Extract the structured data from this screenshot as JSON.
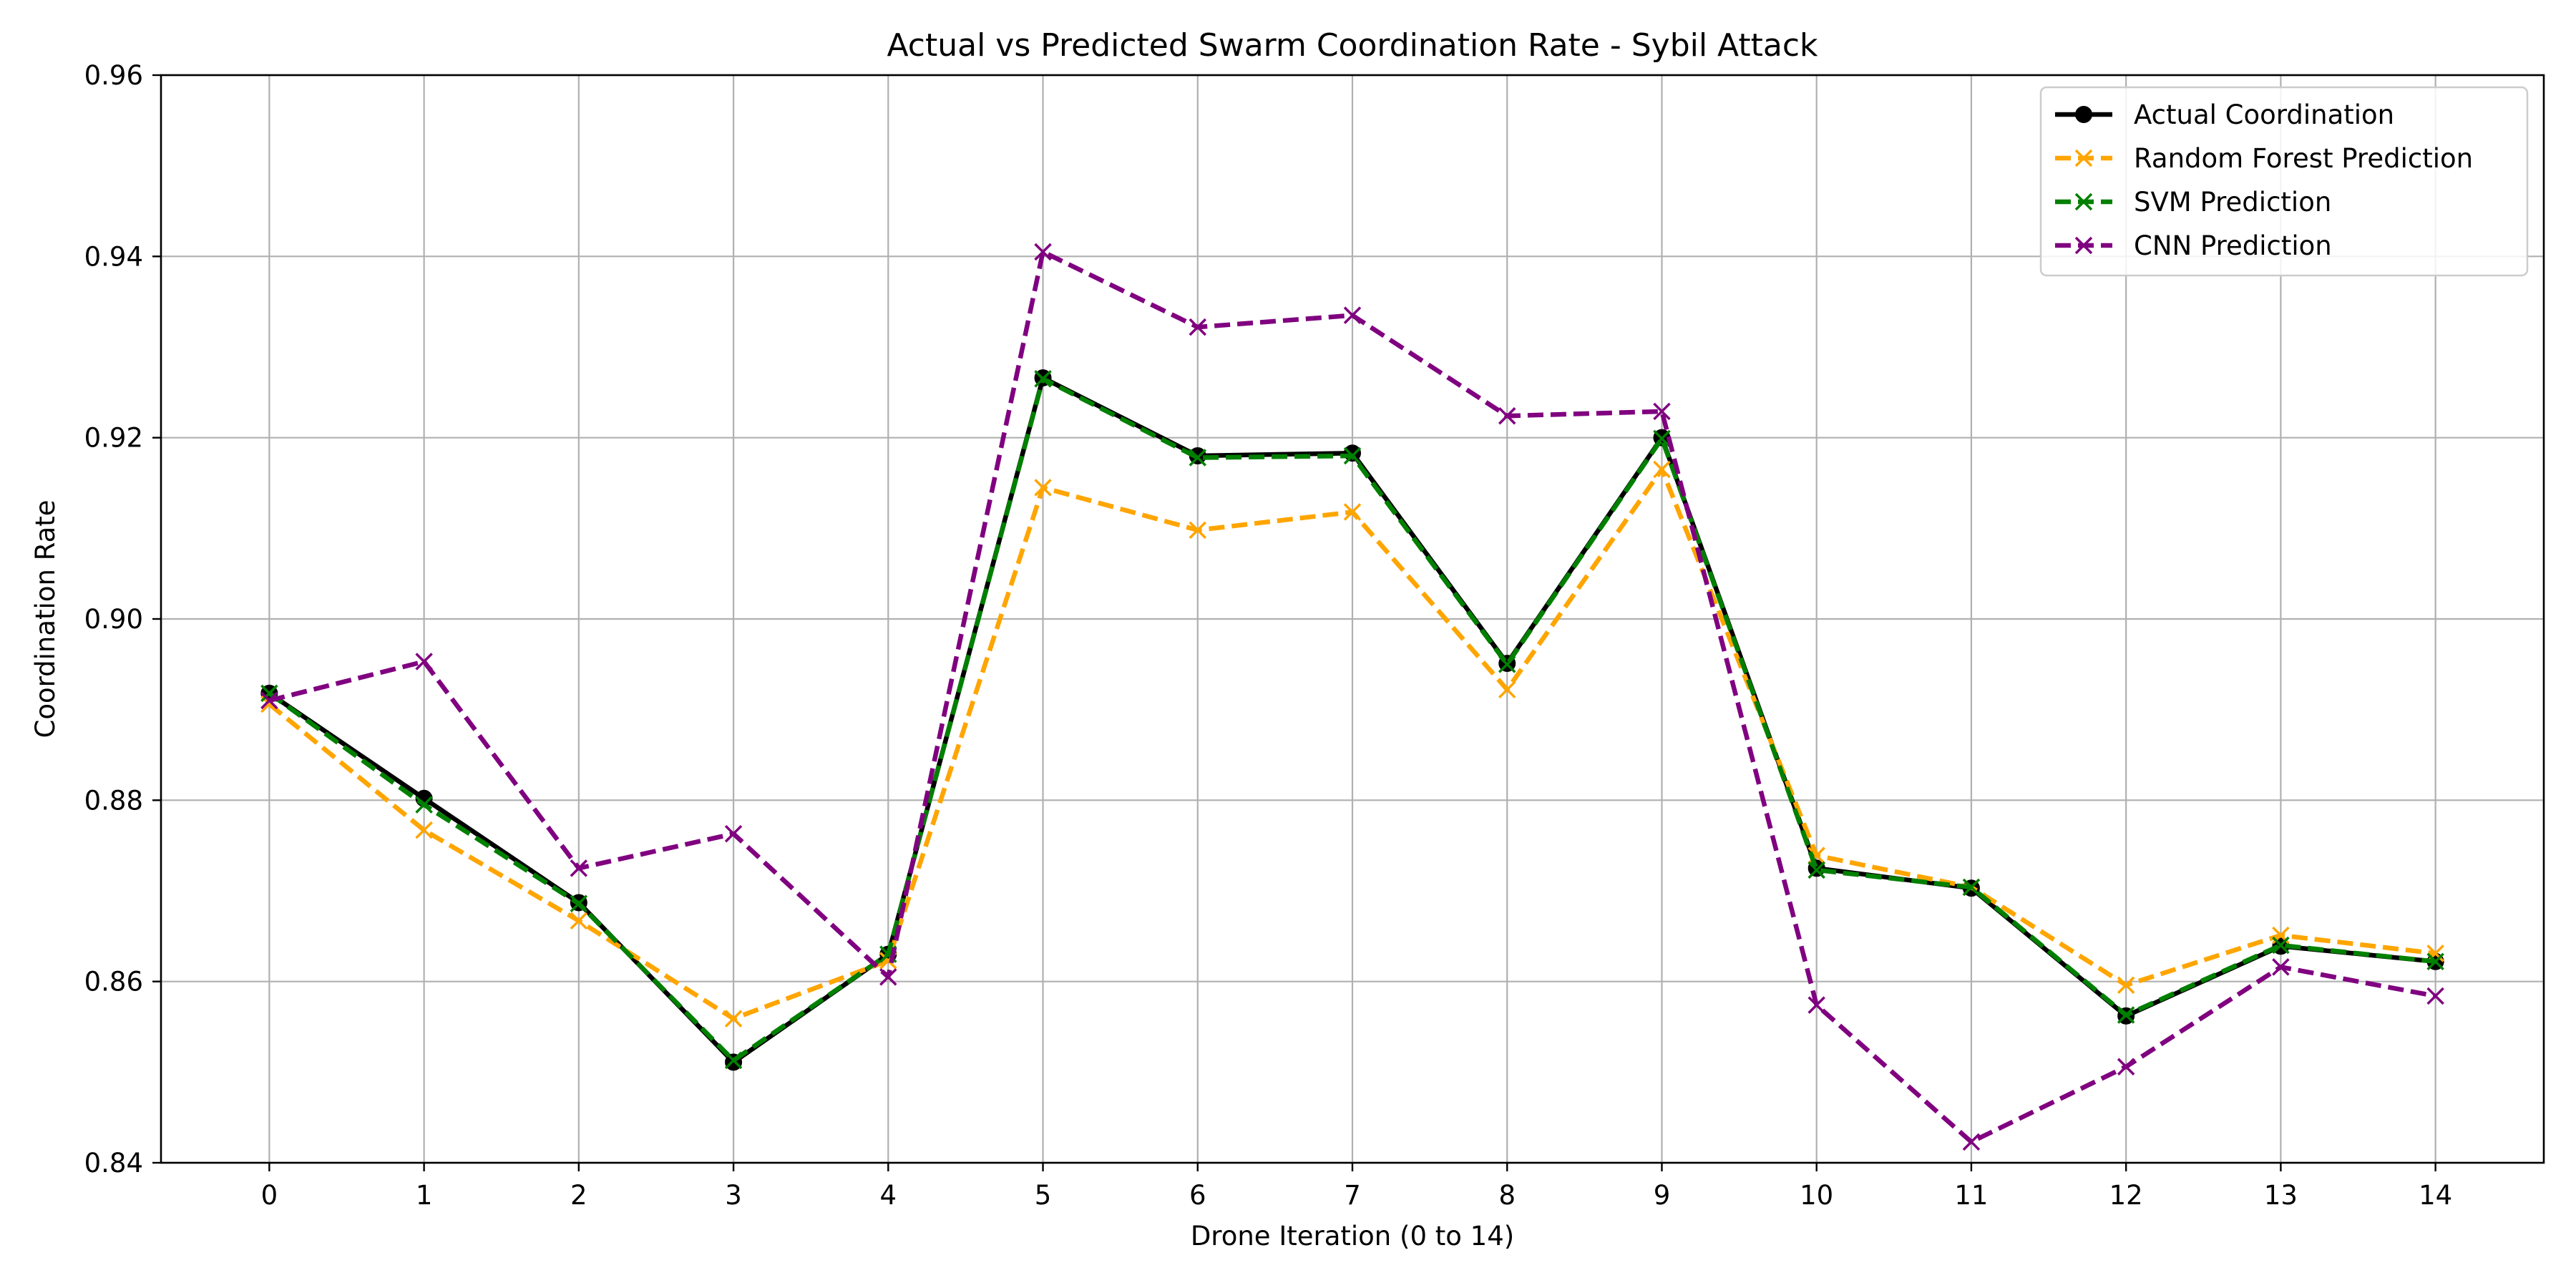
{
  "chart_data": {
    "type": "line",
    "title": "Actual vs Predicted Swarm Coordination Rate - Sybil Attack",
    "xlabel": "Drone Iteration (0 to 14)",
    "ylabel": "Coordination Rate",
    "x": [
      0,
      1,
      2,
      3,
      4,
      5,
      6,
      7,
      8,
      9,
      10,
      11,
      12,
      13,
      14
    ],
    "x_tick_labels": [
      "0",
      "1",
      "2",
      "3",
      "4",
      "5",
      "6",
      "7",
      "8",
      "9",
      "10",
      "11",
      "12",
      "13",
      "14"
    ],
    "xlim": [
      -0.7,
      14.7
    ],
    "ylim": [
      0.84,
      0.96
    ],
    "y_ticks": [
      0.84,
      0.86,
      0.88,
      0.9,
      0.92,
      0.94,
      0.96
    ],
    "y_tick_labels": [
      "0.84",
      "0.86",
      "0.88",
      "0.90",
      "0.92",
      "0.94",
      "0.96"
    ],
    "grid": true,
    "legend_position": "top-right",
    "series": [
      {
        "name": "Actual Coordination",
        "color": "#000000",
        "line_style": "solid",
        "marker": "circle",
        "values": [
          0.8918,
          0.8802,
          0.8687,
          0.8511,
          0.863,
          0.9266,
          0.918,
          0.9183,
          0.8951,
          0.92,
          0.8725,
          0.8703,
          0.8562,
          0.8639,
          0.8622
        ]
      },
      {
        "name": "Random Forest Prediction",
        "color": "#FFA500",
        "line_style": "dashed",
        "marker": "x",
        "values": [
          0.8906,
          0.8767,
          0.8667,
          0.8559,
          0.8623,
          0.9145,
          0.9098,
          0.9118,
          0.8922,
          0.9165,
          0.8739,
          0.8704,
          0.8596,
          0.8651,
          0.8631
        ]
      },
      {
        "name": "SVM Prediction",
        "color": "#008000",
        "line_style": "dashed",
        "marker": "x",
        "values": [
          0.8918,
          0.8795,
          0.8686,
          0.8513,
          0.863,
          0.9265,
          0.9178,
          0.918,
          0.895,
          0.9199,
          0.8723,
          0.8704,
          0.8563,
          0.864,
          0.8622
        ]
      },
      {
        "name": "CNN Prediction",
        "color": "#800080",
        "line_style": "dashed",
        "marker": "x",
        "values": [
          0.891,
          0.8953,
          0.8725,
          0.8763,
          0.8605,
          0.9405,
          0.9322,
          0.9335,
          0.9224,
          0.9229,
          0.8574,
          0.8423,
          0.8506,
          0.8616,
          0.8584
        ]
      }
    ]
  }
}
